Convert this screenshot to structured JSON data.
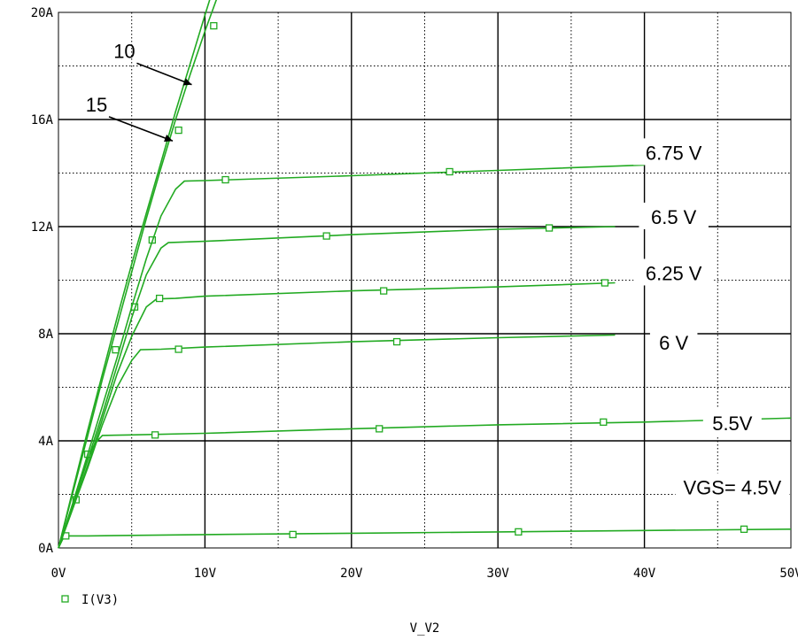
{
  "chart_data": {
    "type": "line",
    "xlabel": "V_V2",
    "ylabel": "",
    "xlim": [
      0,
      50
    ],
    "ylim": [
      0,
      20
    ],
    "x_ticks": [
      0,
      10,
      20,
      30,
      40,
      50
    ],
    "x_tick_labels": [
      "0V",
      "10V",
      "20V",
      "30V",
      "40V",
      "50V"
    ],
    "y_ticks": [
      0,
      4,
      8,
      12,
      16,
      20
    ],
    "y_tick_labels": [
      "0A",
      "4A",
      "8A",
      "12A",
      "16A",
      "20A"
    ],
    "grid": true,
    "legend": {
      "placement": "bottom-left",
      "entries": [
        "I(V3)"
      ]
    },
    "line_color": "#22aa22",
    "series": [
      {
        "label": "VGS= 4.5V",
        "label_xy": [
          46,
          2.2
        ],
        "points": [
          [
            0,
            0
          ],
          [
            0.4,
            0.45
          ],
          [
            2,
            0.45
          ],
          [
            10,
            0.5
          ],
          [
            20,
            0.55
          ],
          [
            30,
            0.6
          ],
          [
            40,
            0.65
          ],
          [
            50,
            0.7
          ]
        ],
        "markers": [
          [
            0.5,
            0.45
          ],
          [
            16,
            0.5
          ],
          [
            31.4,
            0.6
          ],
          [
            46.8,
            0.7
          ]
        ]
      },
      {
        "label": "5.5V",
        "label_xy": [
          46,
          4.6
        ],
        "points": [
          [
            0,
            0
          ],
          [
            0.5,
            0.8
          ],
          [
            1,
            1.7
          ],
          [
            1.5,
            2.6
          ],
          [
            2,
            3.4
          ],
          [
            2.5,
            3.9
          ],
          [
            3,
            4.2
          ],
          [
            5,
            4.22
          ],
          [
            10,
            4.28
          ],
          [
            20,
            4.45
          ],
          [
            30,
            4.6
          ],
          [
            40,
            4.7
          ],
          [
            50,
            4.85
          ]
        ],
        "markers": [
          [
            1.2,
            1.8
          ],
          [
            6.6,
            4.22
          ],
          [
            21.9,
            4.45
          ],
          [
            37.2,
            4.7
          ]
        ]
      },
      {
        "label": "6 V",
        "label_xy": [
          42,
          7.6
        ],
        "points": [
          [
            0,
            0
          ],
          [
            1,
            1.5
          ],
          [
            2,
            3.0
          ],
          [
            3,
            4.6
          ],
          [
            4,
            6.0
          ],
          [
            5,
            7.0
          ],
          [
            5.6,
            7.4
          ],
          [
            7,
            7.42
          ],
          [
            10,
            7.5
          ],
          [
            20,
            7.7
          ],
          [
            30,
            7.85
          ],
          [
            38,
            7.95
          ]
        ],
        "markers": [
          [
            2,
            3.5
          ],
          [
            8.2,
            7.42
          ],
          [
            23.1,
            7.7
          ]
        ]
      },
      {
        "label": "6.25 V",
        "label_xy": [
          42,
          10.2
        ],
        "points": [
          [
            0,
            0
          ],
          [
            1,
            1.5
          ],
          [
            2,
            3.1
          ],
          [
            3,
            4.8
          ],
          [
            4,
            6.5
          ],
          [
            5,
            7.9
          ],
          [
            6,
            9.0
          ],
          [
            6.7,
            9.3
          ],
          [
            8,
            9.32
          ],
          [
            10,
            9.4
          ],
          [
            20,
            9.6
          ],
          [
            30,
            9.75
          ],
          [
            38,
            9.9
          ]
        ],
        "markers": [
          [
            5.2,
            9.0
          ],
          [
            6.9,
            9.32
          ],
          [
            22.2,
            9.6
          ],
          [
            37.3,
            9.9
          ]
        ]
      },
      {
        "label": "6.5 V",
        "label_xy": [
          42,
          12.3
        ],
        "points": [
          [
            0,
            0
          ],
          [
            1,
            1.6
          ],
          [
            2,
            3.3
          ],
          [
            3,
            5.0
          ],
          [
            4,
            6.8
          ],
          [
            5,
            8.6
          ],
          [
            6,
            10.2
          ],
          [
            7,
            11.2
          ],
          [
            7.5,
            11.4
          ],
          [
            10,
            11.45
          ],
          [
            20,
            11.7
          ],
          [
            30,
            11.9
          ],
          [
            38,
            12.0
          ]
        ],
        "markers": [
          [
            6.4,
            11.5
          ],
          [
            18.3,
            11.65
          ],
          [
            33.5,
            11.95
          ]
        ]
      },
      {
        "label": "6.75 V",
        "label_xy": [
          42,
          14.7
        ],
        "points": [
          [
            0,
            0
          ],
          [
            1,
            1.7
          ],
          [
            2,
            3.5
          ],
          [
            3,
            5.3
          ],
          [
            4,
            7.1
          ],
          [
            5,
            9.0
          ],
          [
            6,
            10.8
          ],
          [
            7,
            12.4
          ],
          [
            8,
            13.4
          ],
          [
            8.6,
            13.7
          ],
          [
            10,
            13.72
          ],
          [
            20,
            13.9
          ],
          [
            30,
            14.1
          ],
          [
            40,
            14.3
          ]
        ],
        "markers": [
          [
            11.4,
            13.75
          ],
          [
            26.7,
            14.05
          ]
        ]
      },
      {
        "label": "15",
        "label_xy": [
          2.6,
          16.5
        ],
        "points": [
          [
            0,
            0
          ],
          [
            1,
            2.1
          ],
          [
            2,
            4.2
          ],
          [
            3,
            6.3
          ],
          [
            4,
            8.3
          ],
          [
            5,
            10.3
          ],
          [
            6,
            12.3
          ],
          [
            7,
            14.2
          ],
          [
            8,
            16.0
          ],
          [
            9,
            17.7
          ],
          [
            10,
            19.3
          ],
          [
            10.8,
            20.5
          ]
        ],
        "markers": [
          [
            3.9,
            7.4
          ],
          [
            8.2,
            15.6
          ]
        ]
      },
      {
        "label": "10",
        "label_xy": [
          4.5,
          18.5
        ],
        "points": [
          [
            0,
            0
          ],
          [
            1,
            2.2
          ],
          [
            2,
            4.4
          ],
          [
            3,
            6.5
          ],
          [
            4,
            8.6
          ],
          [
            5,
            10.6
          ],
          [
            6,
            12.5
          ],
          [
            7,
            14.4
          ],
          [
            8,
            16.3
          ],
          [
            9,
            18.1
          ],
          [
            10,
            19.9
          ],
          [
            10.8,
            21.3
          ]
        ],
        "markers": [
          [
            10.6,
            19.5
          ]
        ]
      }
    ]
  }
}
